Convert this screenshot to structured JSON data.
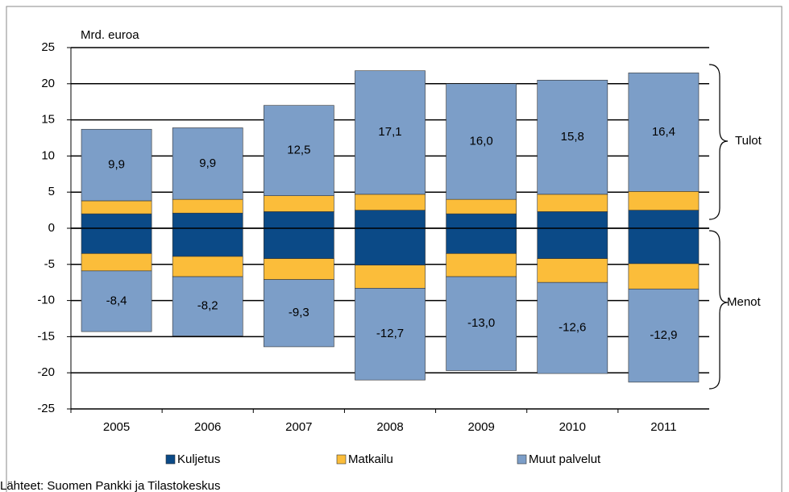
{
  "chart_data": {
    "type": "bar",
    "stacked": true,
    "unit_label": "Mrd. euroa",
    "categories": [
      "2005",
      "2006",
      "2007",
      "2008",
      "2009",
      "2010",
      "2011"
    ],
    "series": [
      {
        "name": "Kuljetus",
        "color": "#0b4a87",
        "values": [
          2.0,
          2.1,
          2.3,
          2.5,
          2.0,
          2.3,
          2.5
        ],
        "values_menot": [
          -3.5,
          -3.9,
          -4.2,
          -5.1,
          -3.5,
          -4.2,
          -4.9
        ]
      },
      {
        "name": "Matkailu",
        "color": "#fbbd3a",
        "values": [
          1.8,
          1.9,
          2.2,
          2.2,
          2.0,
          2.4,
          2.6
        ],
        "values_menot": [
          -2.4,
          -2.8,
          -2.9,
          -3.2,
          -3.2,
          -3.3,
          -3.5
        ]
      },
      {
        "name": "Muut palvelut",
        "color": "#7c9ec8",
        "values": [
          9.9,
          9.9,
          12.5,
          17.1,
          16.0,
          15.8,
          16.4
        ],
        "value_labels": [
          "9,9",
          "9,9",
          "12,5",
          "17,1",
          "16,0",
          "15,8",
          "16,4"
        ],
        "values_menot": [
          -8.4,
          -8.2,
          -9.3,
          -12.7,
          -13.0,
          -12.6,
          -12.9
        ],
        "value_labels_menot": [
          "-8,4",
          "-8,2",
          "-9,3",
          "-12,7",
          "-13,0",
          "-12,6",
          "-12,9"
        ]
      }
    ],
    "ylim": [
      -25,
      25
    ],
    "yticks": [
      -25,
      -20,
      -15,
      -10,
      -5,
      0,
      5,
      10,
      15,
      20,
      25
    ],
    "grid": true,
    "annotations": {
      "tulot": "Tulot",
      "menot": "Menot"
    },
    "legend": "bottom",
    "source": "Lähteet: Suomen Pankki ja Tilastokeskus"
  }
}
